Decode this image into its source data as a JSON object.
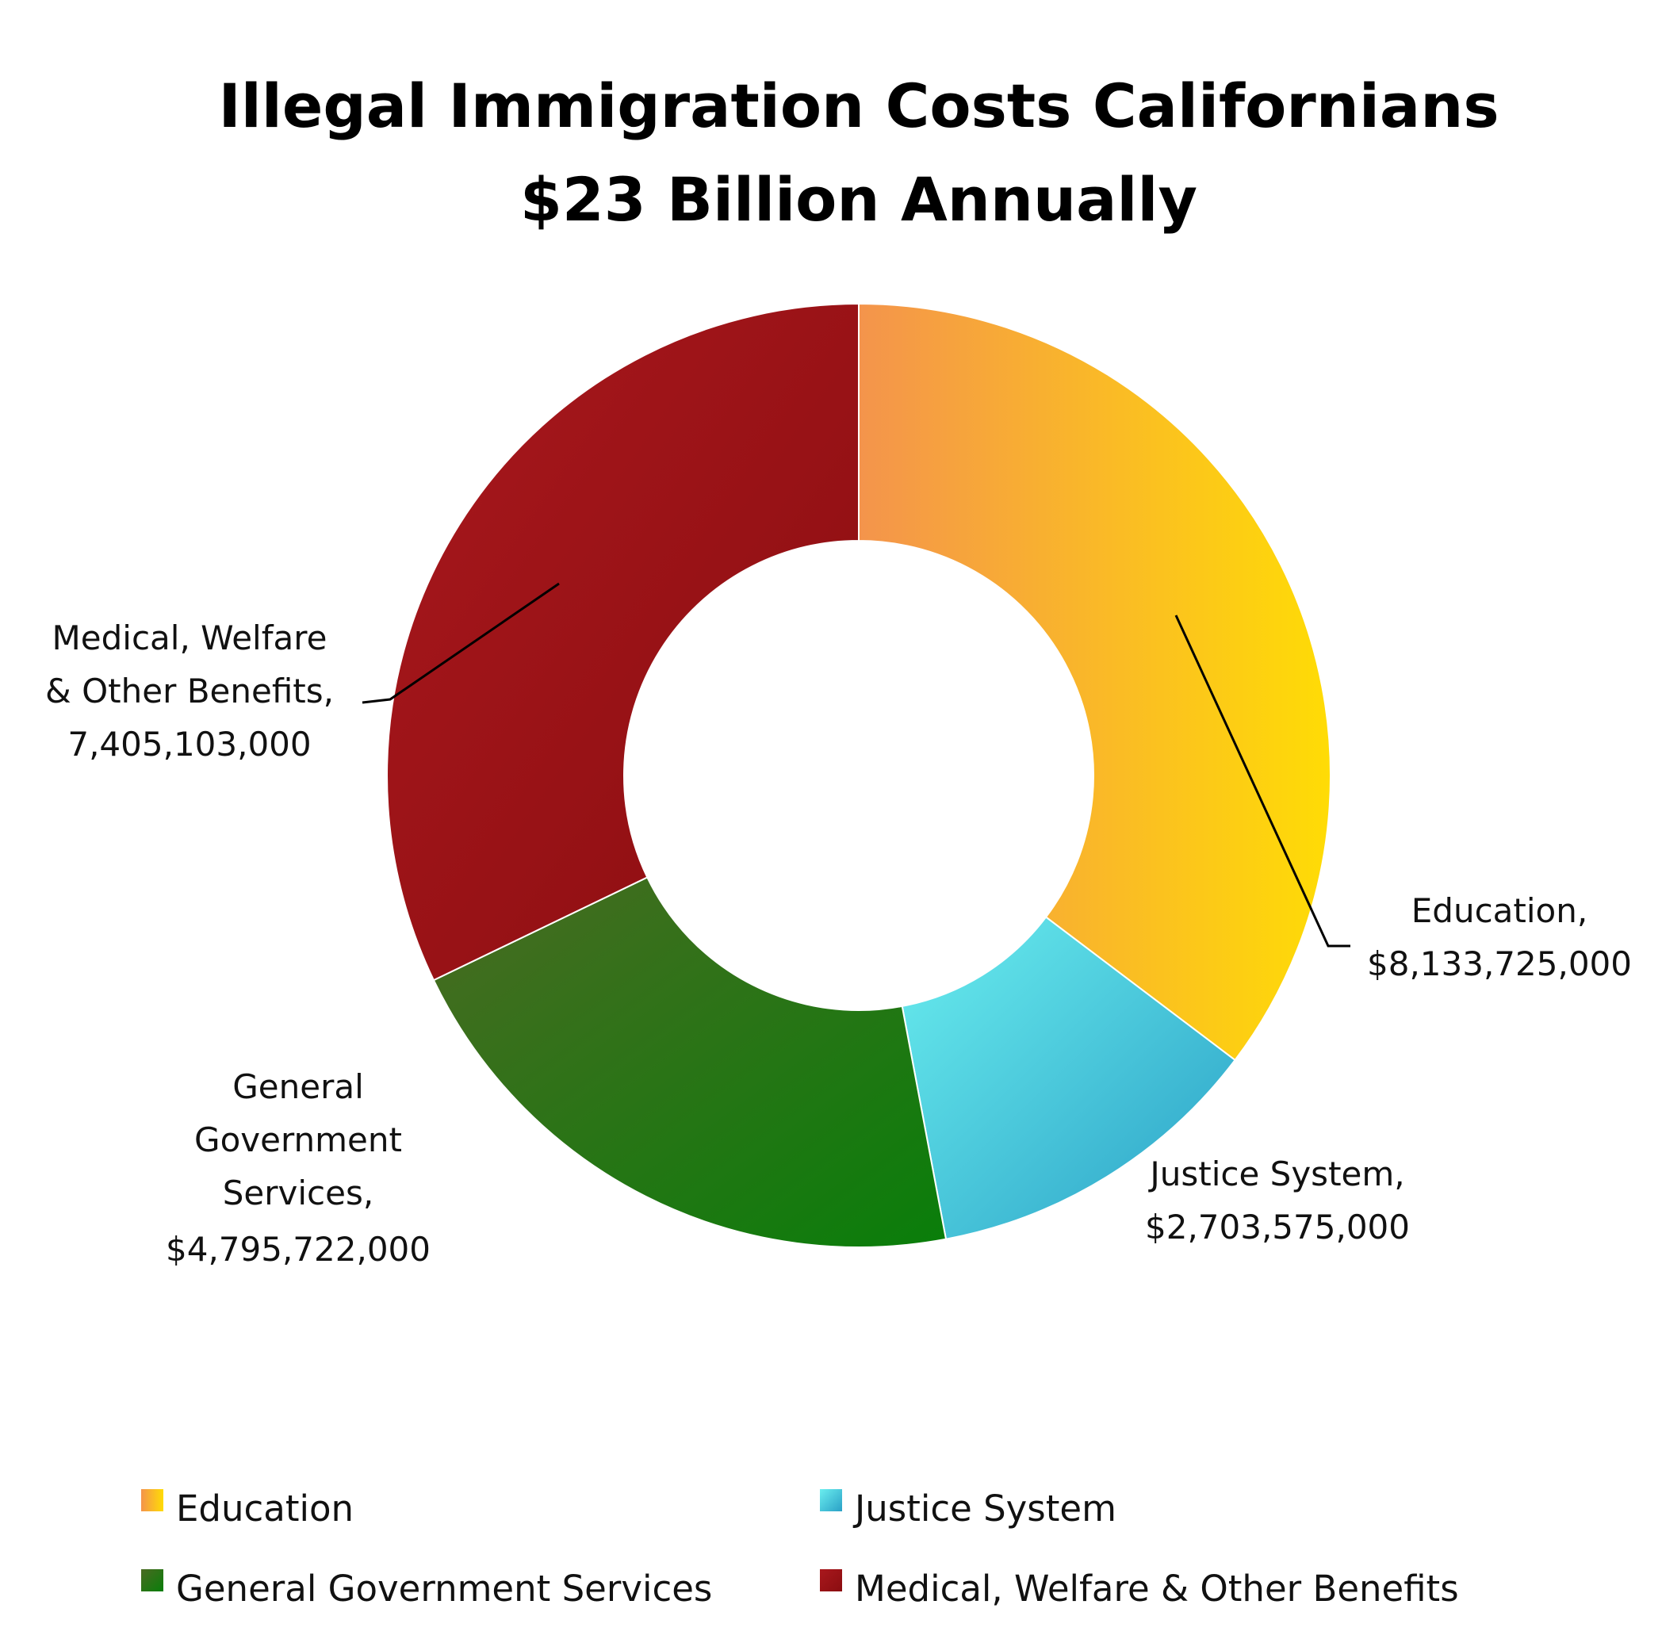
{
  "chart_data": {
    "type": "pie",
    "variant": "donut",
    "title": [
      "Illegal Immigration Costs Californians",
      "$23 Billion Annually"
    ],
    "categories": [
      "Education",
      "Justice System",
      "General Government Services",
      "Medical, Welfare & Other Benefits"
    ],
    "values": [
      8133725000,
      2703575000,
      4795722000,
      7405103000
    ],
    "data_labels": [
      [
        "Education,",
        "$8,133,725,000"
      ],
      [
        "Justice System,",
        "$2,703,575,000"
      ],
      [
        "General",
        "Government",
        "Services,",
        "$4,795,722,000"
      ],
      [
        "Medical, Welfare",
        "& Other Benefits,",
        "7,405,103,000"
      ]
    ],
    "colors": [
      [
        "#f4944c",
        "#ffdc05"
      ],
      [
        "#6aeeef",
        "#2aa0c6"
      ],
      [
        "#4a6a22",
        "#097e0a"
      ],
      [
        "#a9181d",
        "#8a0d10"
      ]
    ],
    "legend": {
      "placement": "bottom",
      "items": [
        "Education",
        "Justice System",
        "General Government Services",
        "Medical, Welfare & Other Benefits"
      ]
    }
  }
}
